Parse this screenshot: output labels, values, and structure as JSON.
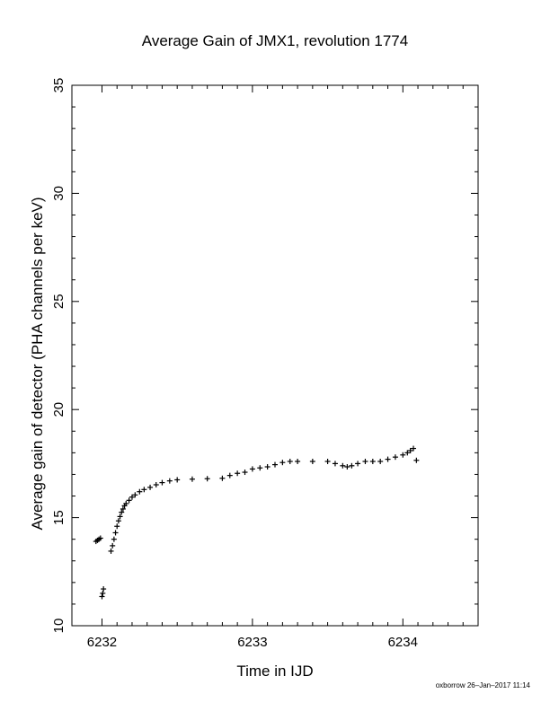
{
  "chart_data": {
    "type": "scatter",
    "title": "Average Gain of JMX1, revolution 1774",
    "xlabel": "Time in IJD",
    "ylabel": "Average gain of detector (PHA channels per keV)",
    "xlim": [
      6231.8,
      6234.5
    ],
    "ylim": [
      10,
      35
    ],
    "xticks": [
      6232,
      6233,
      6234
    ],
    "yticks": [
      10,
      15,
      20,
      25,
      30,
      35
    ],
    "marker": "plus",
    "color": "#000000",
    "series": [
      {
        "points": [
          [
            6231.96,
            13.9
          ],
          [
            6231.97,
            13.95
          ],
          [
            6231.98,
            14.0
          ],
          [
            6231.99,
            14.05
          ],
          [
            6232.0,
            11.35
          ],
          [
            6232.005,
            11.5
          ],
          [
            6232.01,
            11.7
          ],
          [
            6232.06,
            13.45
          ],
          [
            6232.07,
            13.7
          ],
          [
            6232.08,
            14.0
          ],
          [
            6232.09,
            14.3
          ],
          [
            6232.1,
            14.6
          ],
          [
            6232.11,
            14.85
          ],
          [
            6232.12,
            15.05
          ],
          [
            6232.13,
            15.25
          ],
          [
            6232.14,
            15.4
          ],
          [
            6232.15,
            15.55
          ],
          [
            6232.16,
            15.65
          ],
          [
            6232.18,
            15.8
          ],
          [
            6232.2,
            15.95
          ],
          [
            6232.22,
            16.05
          ],
          [
            6232.25,
            16.2
          ],
          [
            6232.28,
            16.3
          ],
          [
            6232.32,
            16.4
          ],
          [
            6232.36,
            16.52
          ],
          [
            6232.4,
            16.62
          ],
          [
            6232.45,
            16.7
          ],
          [
            6232.5,
            16.75
          ],
          [
            6232.6,
            16.78
          ],
          [
            6232.7,
            16.8
          ],
          [
            6232.8,
            16.82
          ],
          [
            6232.85,
            16.95
          ],
          [
            6232.9,
            17.05
          ],
          [
            6232.95,
            17.1
          ],
          [
            6233.0,
            17.25
          ],
          [
            6233.05,
            17.3
          ],
          [
            6233.1,
            17.35
          ],
          [
            6233.15,
            17.45
          ],
          [
            6233.2,
            17.55
          ],
          [
            6233.25,
            17.6
          ],
          [
            6233.3,
            17.6
          ],
          [
            6233.4,
            17.6
          ],
          [
            6233.5,
            17.6
          ],
          [
            6233.55,
            17.5
          ],
          [
            6233.6,
            17.4
          ],
          [
            6233.63,
            17.35
          ],
          [
            6233.66,
            17.4
          ],
          [
            6233.7,
            17.5
          ],
          [
            6233.75,
            17.6
          ],
          [
            6233.8,
            17.6
          ],
          [
            6233.85,
            17.6
          ],
          [
            6233.9,
            17.7
          ],
          [
            6233.95,
            17.8
          ],
          [
            6234.0,
            17.9
          ],
          [
            6234.03,
            18.0
          ],
          [
            6234.05,
            18.1
          ],
          [
            6234.07,
            18.2
          ],
          [
            6234.09,
            17.65
          ]
        ]
      }
    ]
  },
  "footer": "oxborrow 26–Jan–2017 11:14"
}
